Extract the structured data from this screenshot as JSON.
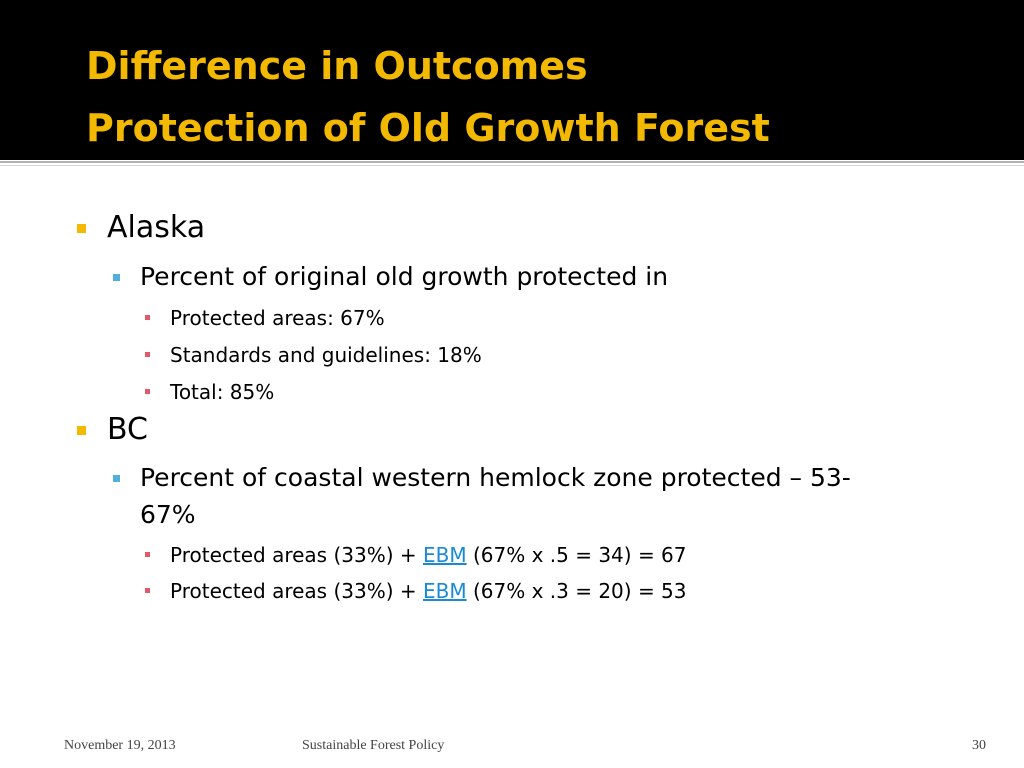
{
  "slide": {
    "title_line1": "Difference in Outcomes",
    "title_line2": "Protection of Old Growth Forest"
  },
  "content": {
    "alaska": {
      "label": "Alaska",
      "sub": "Percent of original old growth protected in",
      "items": [
        "Protected areas:  67%",
        "Standards and guidelines:  18%",
        "Total:  85%"
      ]
    },
    "bc": {
      "label": "BC",
      "sub_line1": "Percent of coastal western hemlock zone protected – 53-",
      "sub_line2": "67%",
      "items": [
        {
          "before": "Protected areas (33%) + ",
          "link": "EBM",
          "after": " (67% x .5 = 34) = 67"
        },
        {
          "before": "Protected areas (33%) + ",
          "link": "EBM",
          "after": " (67% x .3 = 20) = 53"
        }
      ]
    }
  },
  "footer": {
    "date": "November 19, 2013",
    "course": "Sustainable Forest Policy",
    "page": "30"
  },
  "colors": {
    "title_bg": "#000000",
    "title_text": "#f2b900",
    "level1_bullet": "#f2b900",
    "level2_bullet": "#4fb0d9",
    "level3_bullet": "#e05a6a",
    "link": "#1a8ad6"
  }
}
